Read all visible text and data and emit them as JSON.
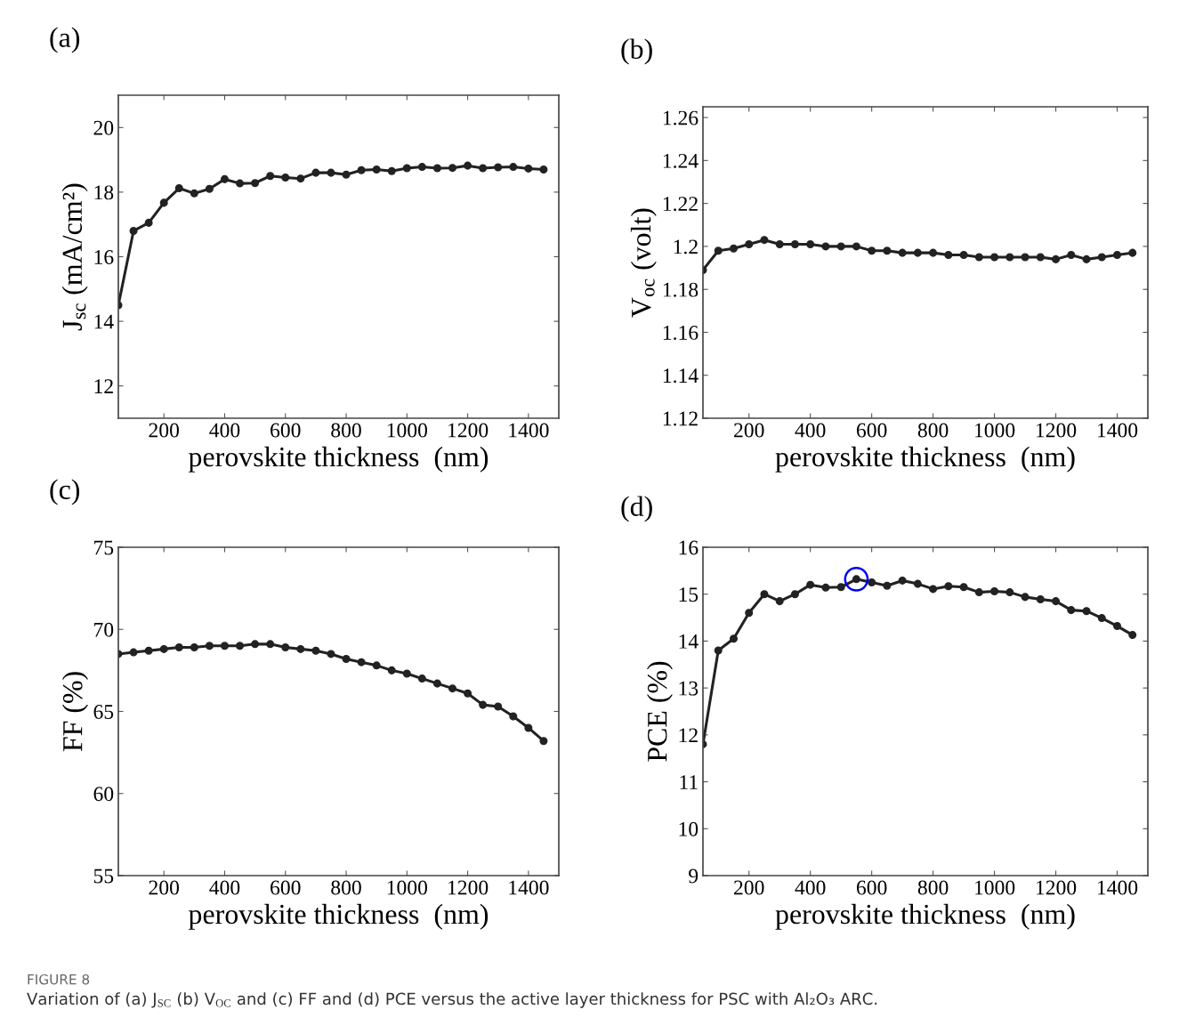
{
  "chart_data": [
    {
      "type": "line",
      "title": "(a)",
      "xlabel": "perovskite thickness  (nm)",
      "ylabel": "J$_{sc}$ (mA/cm²)",
      "xlim": [
        50,
        1500
      ],
      "xticks": [
        200,
        400,
        600,
        800,
        1000,
        1200,
        1400
      ],
      "ylim": [
        11,
        21
      ],
      "yticks": [
        12,
        14,
        16,
        18,
        20
      ],
      "marker": "circle",
      "line_style": "solid",
      "x": [
        50,
        100,
        150,
        200,
        250,
        300,
        350,
        400,
        450,
        500,
        550,
        600,
        650,
        700,
        750,
        800,
        850,
        900,
        950,
        1000,
        1050,
        1100,
        1150,
        1200,
        1250,
        1300,
        1350,
        1400,
        1450
      ],
      "series": [
        {
          "color": "#222222",
          "values": [
            14.5,
            16.8,
            17.05,
            17.67,
            18.12,
            17.96,
            18.1,
            18.4,
            18.27,
            18.28,
            18.5,
            18.45,
            18.42,
            18.6,
            18.6,
            18.54,
            18.68,
            18.7,
            18.65,
            18.74,
            18.78,
            18.74,
            18.75,
            18.82,
            18.74,
            18.77,
            18.78,
            18.73,
            18.7
          ]
        }
      ],
      "annotations": [
        "FIGURE 8",
        "Variation of (a) J$_{SC}$ (b) V$_{OC}$ and (c) FF and (d) PCE versus the active layer thickness for PSC with Al₂O₃ ARC."
      ]
    },
    {
      "type": "line",
      "title": "(b)",
      "xlabel": "perovskite thickness  (nm)",
      "ylabel": "V$_{oc}$ (volt)",
      "xlim": [
        50,
        1500
      ],
      "xticks": [
        200,
        400,
        600,
        800,
        1000,
        1200,
        1400
      ],
      "ylim": [
        1.12,
        1.265
      ],
      "yticks": [
        1.12,
        1.14,
        1.16,
        1.18,
        {
          "value": 1.2,
          "label": "1.2"
        },
        1.22,
        1.24,
        1.26
      ],
      "marker": "circle",
      "line_style": "solid",
      "x": [
        50,
        100,
        150,
        200,
        250,
        300,
        350,
        400,
        450,
        500,
        550,
        600,
        650,
        700,
        750,
        800,
        850,
        900,
        950,
        1000,
        1050,
        1100,
        1150,
        1200,
        1250,
        1300,
        1350,
        1400,
        1450
      ],
      "series": [
        {
          "color": "#222222",
          "values": [
            1.189,
            1.198,
            1.199,
            1.201,
            1.203,
            1.201,
            1.201,
            1.201,
            1.2,
            1.2,
            1.2,
            1.198,
            1.198,
            1.197,
            1.197,
            1.197,
            1.196,
            1.196,
            1.195,
            1.195,
            1.195,
            1.195,
            1.195,
            1.194,
            1.196,
            1.194,
            1.195,
            1.196,
            1.197
          ]
        }
      ]
    },
    {
      "type": "line",
      "title": "(c)",
      "xlabel": "perovskite thickness  (nm)",
      "ylabel": "FF (%)",
      "xlim": [
        50,
        1500
      ],
      "xticks": [
        200,
        400,
        600,
        800,
        1000,
        1200,
        1400
      ],
      "ylim": [
        55,
        75
      ],
      "yticks": [
        55,
        60,
        65,
        70,
        75
      ],
      "marker": "circle",
      "line_style": "solid",
      "x": [
        50,
        100,
        150,
        200,
        250,
        300,
        350,
        400,
        450,
        500,
        550,
        600,
        650,
        700,
        750,
        800,
        850,
        900,
        950,
        1000,
        1050,
        1100,
        1150,
        1200,
        1250,
        1300,
        1350,
        1400,
        1450
      ],
      "series": [
        {
          "color": "#222222",
          "values": [
            68.5,
            68.6,
            68.7,
            68.8,
            68.9,
            68.9,
            69.0,
            69.0,
            69.0,
            69.1,
            69.1,
            68.9,
            68.8,
            68.7,
            68.5,
            68.2,
            68.0,
            67.8,
            67.5,
            67.3,
            67.0,
            66.7,
            66.4,
            66.1,
            65.4,
            65.3,
            64.7,
            64.0,
            63.2
          ]
        }
      ]
    },
    {
      "type": "line",
      "title": "(d)",
      "xlabel": "perovskite thickness  (nm)",
      "ylabel": "PCE (%)",
      "xlim": [
        50,
        1500
      ],
      "xticks": [
        200,
        400,
        600,
        800,
        1000,
        1200,
        1400
      ],
      "ylim": [
        9,
        16
      ],
      "yticks": [
        9,
        10,
        11,
        12,
        13,
        14,
        15,
        16
      ],
      "marker": "circle",
      "line_style": "solid",
      "x": [
        50,
        100,
        150,
        200,
        250,
        300,
        350,
        400,
        450,
        500,
        550,
        600,
        650,
        700,
        750,
        800,
        850,
        900,
        950,
        1000,
        1050,
        1100,
        1150,
        1200,
        1250,
        1300,
        1350,
        1400,
        1450
      ],
      "series": [
        {
          "color": "#222222",
          "values": [
            11.8,
            13.8,
            14.05,
            14.6,
            15.0,
            14.85,
            15.0,
            15.2,
            15.14,
            15.15,
            15.32,
            15.25,
            15.18,
            15.29,
            15.22,
            15.11,
            15.17,
            15.15,
            15.04,
            15.06,
            15.04,
            14.94,
            14.89,
            14.85,
            14.66,
            14.64,
            14.49,
            14.32,
            14.13
          ]
        },
        {
          "type": "scatter",
          "color": "#0000ee",
          "x": [
            550
          ],
          "values": [
            15.32
          ]
        }
      ]
    }
  ]
}
